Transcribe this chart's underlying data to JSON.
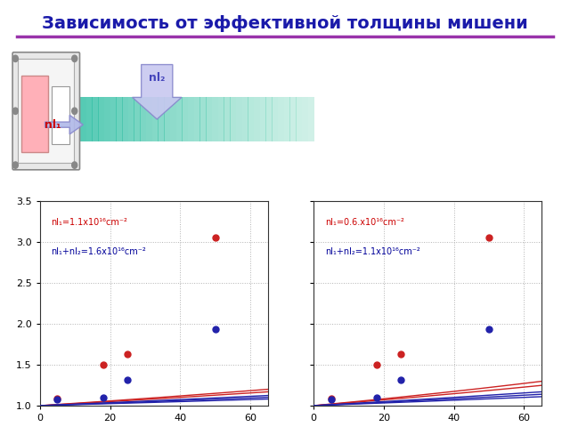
{
  "title": "Зависимость от эффективной толщины мишени",
  "title_color": "#1a1aaa",
  "title_fontsize": 14,
  "background_color": "#ffffff",
  "separator_color": "#9933aa",
  "plot1": {
    "legend1_text": "nl₁=1.1x10¹⁶cm⁻²",
    "legend2_text": "nl₁+nl₂=1.6x10¹⁶cm⁻²",
    "legend1_color": "#cc0000",
    "legend2_color": "#000099",
    "xlim": [
      0,
      65
    ],
    "ylim": [
      1.0,
      3.5
    ],
    "yticks": [
      1.0,
      1.5,
      2.0,
      2.5,
      3.0,
      3.5
    ],
    "xticks": [
      0,
      20,
      40,
      60
    ],
    "red_dots": [
      [
        5,
        1.09
      ],
      [
        18,
        1.5
      ],
      [
        25,
        1.63
      ],
      [
        50,
        3.05
      ]
    ],
    "blue_dots": [
      [
        5,
        1.08
      ],
      [
        18,
        1.1
      ],
      [
        25,
        1.32
      ],
      [
        50,
        1.93
      ]
    ],
    "red_curves": [
      [
        0,
        65,
        1.0,
        0.028
      ],
      [
        0,
        65,
        1.0,
        0.024
      ]
    ],
    "blue_curves": [
      [
        0,
        65,
        1.0,
        0.018
      ],
      [
        0,
        65,
        1.0,
        0.015
      ],
      [
        0,
        65,
        1.0,
        0.012
      ]
    ]
  },
  "plot2": {
    "legend1_text": "nl₁=0.6.x10¹⁶cm⁻²",
    "legend2_text": "nl₁+nl₂=1.1x10¹⁶cm⁻²",
    "legend1_color": "#cc0000",
    "legend2_color": "#000099",
    "xlim": [
      0,
      65
    ],
    "ylim": [
      1.0,
      3.5
    ],
    "yticks": [
      1.0,
      1.5,
      2.0,
      2.5,
      3.0,
      3.5
    ],
    "xticks": [
      0,
      20,
      40,
      60
    ],
    "red_dots": [
      [
        5,
        1.09
      ],
      [
        18,
        1.5
      ],
      [
        25,
        1.63
      ],
      [
        50,
        3.05
      ]
    ],
    "blue_dots": [
      [
        5,
        1.08
      ],
      [
        18,
        1.1
      ],
      [
        25,
        1.32
      ],
      [
        50,
        1.93
      ]
    ],
    "red_curves": [
      [
        0,
        65,
        1.0,
        0.04
      ],
      [
        0,
        65,
        1.0,
        0.034
      ]
    ],
    "blue_curves": [
      [
        0,
        65,
        1.0,
        0.024
      ],
      [
        0,
        65,
        1.0,
        0.02
      ],
      [
        0,
        65,
        1.0,
        0.016
      ]
    ]
  },
  "nl1_label": "nl₁",
  "nl2_label": "nl₂",
  "label_color": "#cc0000",
  "label2_color": "#5555cc",
  "beam_color1": "#40c0a0",
  "beam_color2": "#80e0c0"
}
